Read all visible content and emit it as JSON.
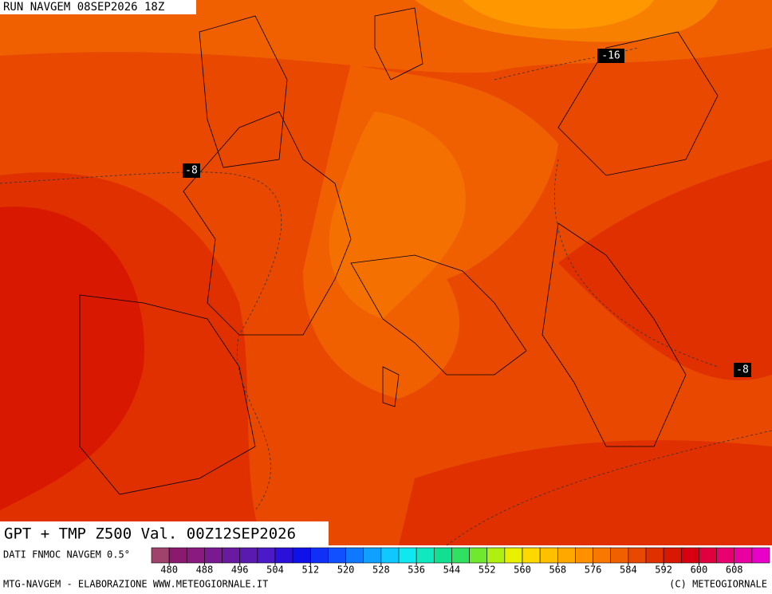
{
  "header": "RUN NAVGEM 08SEP2026 18Z",
  "labels": [
    "-16",
    "-8",
    "-8"
  ],
  "title": "GPT + TMP Z500 Val. 00Z12SEP2026",
  "source": "DATI FNMOC NAVGEM 0.5°",
  "colorbar": {
    "lim": [
      476,
      616
    ],
    "ticks": [
      480,
      488,
      496,
      504,
      512,
      520,
      528,
      536,
      544,
      552,
      560,
      568,
      576,
      584,
      592,
      600,
      608
    ],
    "colors": [
      "#a0426b",
      "#8b1a6e",
      "#8a1a80",
      "#7a1a90",
      "#6a1aa0",
      "#5a1ab0",
      "#4a1ac8",
      "#2a10d8",
      "#1010e8",
      "#1030f8",
      "#1050ff",
      "#1078ff",
      "#10a0ff",
      "#10c8ff",
      "#10e8f0",
      "#10e8c0",
      "#10e090",
      "#30e060",
      "#70e830",
      "#b0f010",
      "#e8f000",
      "#ffd800",
      "#ffc000",
      "#ffa800",
      "#ff9000",
      "#f87800",
      "#f06000",
      "#e84800",
      "#e03000",
      "#d81800",
      "#d80010",
      "#e00040",
      "#e80070",
      "#e800a0",
      "#e800c8"
    ]
  },
  "footer_left": "MTG-NAVGEM - ELABORAZIONE WWW.METEOGIORNALE.IT",
  "footer_right": "(C) METEOGIORNALE"
}
